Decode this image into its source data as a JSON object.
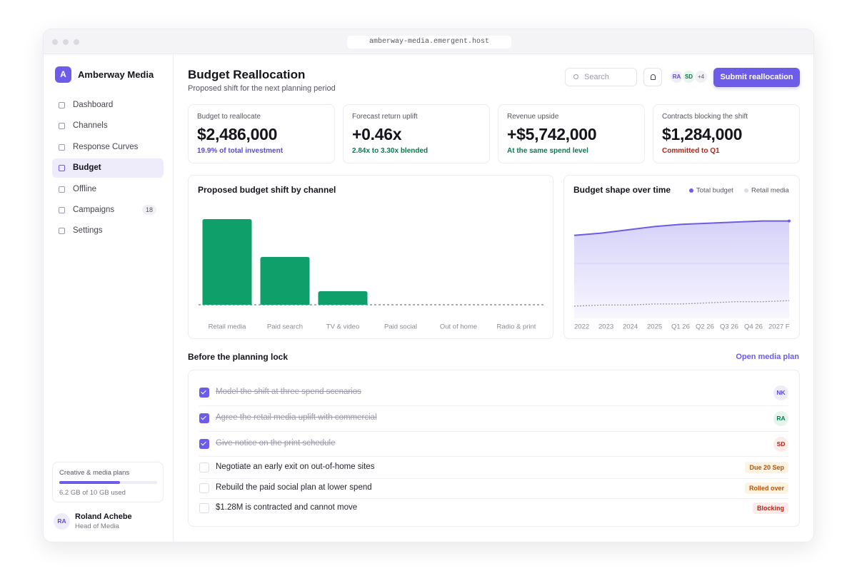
{
  "browser": {
    "url": "amberway-media.emergent.host"
  },
  "sidebar": {
    "brand_initial": "A",
    "brand": "Amberway Media",
    "nav": [
      {
        "label": "Dashboard"
      },
      {
        "label": "Channels"
      },
      {
        "label": "Response Curves"
      },
      {
        "label": "Budget",
        "active": true
      },
      {
        "label": "Offline"
      },
      {
        "label": "Campaigns",
        "badge": "18"
      },
      {
        "label": "Settings"
      }
    ],
    "storage": {
      "title": "Creative & media plans",
      "used": 6.2,
      "total": 10,
      "label": "6.2 GB of 10 GB used"
    },
    "user": {
      "initials": "RA",
      "name": "Roland Achebe",
      "role": "Head of Media"
    }
  },
  "header": {
    "title": "Budget Reallocation",
    "subtitle": "Proposed shift for the next planning period",
    "search": "Search",
    "avatars": [
      "RA",
      "SD"
    ],
    "more": "+4",
    "button": "Submit reallocation"
  },
  "kpis": [
    {
      "label": "Budget to reallocate",
      "value": "$2,486,000",
      "note": "19.9% of total investment",
      "note_color": "#5b4bd6"
    },
    {
      "label": "Forecast return uplift",
      "value": "+0.46x",
      "note": "2.84x to 3.30x blended",
      "note_color": "#0b7a4f"
    },
    {
      "label": "Revenue upside",
      "value": "+$5,742,000",
      "note": "At the same spend level",
      "note_color": "#0b7a4f"
    },
    {
      "label": "Contracts blocking the shift",
      "value": "$1,284,000",
      "note": "Committed to Q1",
      "note_color": "#b42318"
    }
  ],
  "chart_data": [
    {
      "type": "bar",
      "title": "Proposed budget shift by channel",
      "categories": [
        "Retail media",
        "Paid search",
        "TV & video",
        "Paid social",
        "Out of home",
        "Radio & print"
      ],
      "values": [
        120,
        67,
        19,
        0,
        0,
        0
      ],
      "color": "#0e9f6a",
      "ylim": [
        0,
        135
      ]
    },
    {
      "type": "line",
      "title": "Budget shape over time",
      "categories": [
        "2022",
        "2023",
        "2024",
        "2025",
        "Q1 26",
        "Q2 26",
        "Q3 26",
        "Q4 26",
        "2027 F"
      ],
      "series": [
        {
          "name": "Total budget",
          "color": "#6c5ce7",
          "values": [
            75,
            77,
            80,
            83,
            85,
            86,
            87,
            88,
            88
          ]
        },
        {
          "name": "Retail media",
          "color": "#9a9aa8",
          "values": [
            11,
            12,
            12,
            13,
            13,
            14,
            15,
            15,
            16
          ]
        }
      ],
      "ylim": [
        0,
        100
      ]
    }
  ],
  "checklist": {
    "title": "Before the planning lock",
    "link": "Open media plan",
    "items": [
      {
        "text": "Model the shift at three spend scenarios",
        "done": true,
        "tag": "NK",
        "tag_color": "#5b4bd6",
        "tag_bg": "#eeecfb"
      },
      {
        "text": "Agree the retail media uplift with commercial",
        "done": true,
        "tag": "RA",
        "tag_color": "#0b7a4f",
        "tag_bg": "#e6f4ee"
      },
      {
        "text": "Give notice on the print schedule",
        "done": true,
        "tag": "SD",
        "tag_color": "#b42318",
        "tag_bg": "#fdecea"
      },
      {
        "text": "Negotiate an early exit on out-of-home sites",
        "done": false,
        "tag": "Due 20 Sep",
        "tag_color": "#b45309",
        "tag_bg": "#fdf3e3"
      },
      {
        "text": "Rebuild the paid social plan at lower spend",
        "done": false,
        "tag": "Rolled over",
        "tag_color": "#b45309",
        "tag_bg": "#fdf3e3"
      },
      {
        "text": "$1.28M is contracted and cannot move",
        "done": false,
        "tag": "Blocking",
        "tag_color": "#b42318",
        "tag_bg": "#fdecea"
      }
    ]
  }
}
